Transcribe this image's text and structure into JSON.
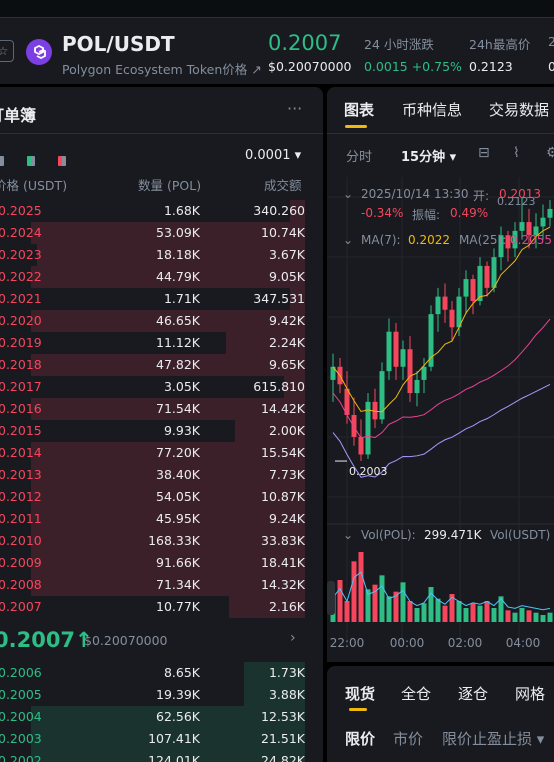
{
  "header": {
    "fav_icon": "star-icon",
    "pair": "POL/USDT",
    "pair_sub": "Polygon Ecosystem Token价格 ↗",
    "last_price": "0.2007",
    "last_price_usd": "$0.20070000",
    "change_label": "24 小时涨跌",
    "change_value": "0.0015 +0.75%",
    "high_label": "24h最高价",
    "high_value": "0.2123",
    "low_label_partial": "2",
    "low_value_partial": "0",
    "up_color": "#2ebd85",
    "down_color": "#f6465d"
  },
  "orderbook": {
    "title": "订单簿",
    "more": "···",
    "tick_size": "0.0001 ▾",
    "col_price": "价格 (USDT)",
    "col_qty": "数量 (POL)",
    "col_total": "成交额",
    "asks": [
      {
        "price": "0.2025",
        "qty": "1.68K",
        "total": "340.260",
        "depth": 0.05
      },
      {
        "price": "0.2024",
        "qty": "53.09K",
        "total": "10.74K",
        "depth": 0.9
      },
      {
        "price": "0.2023",
        "qty": "18.18K",
        "total": "3.67K",
        "depth": 0.88
      },
      {
        "price": "0.2022",
        "qty": "44.79K",
        "total": "9.05K",
        "depth": 0.9
      },
      {
        "price": "0.2021",
        "qty": "1.71K",
        "total": "347.531",
        "depth": 0.05
      },
      {
        "price": "0.2020",
        "qty": "46.65K",
        "total": "9.42K",
        "depth": 0.9
      },
      {
        "price": "0.2019",
        "qty": "11.12K",
        "total": "2.24K",
        "depth": 0.26
      },
      {
        "price": "0.2018",
        "qty": "47.82K",
        "total": "9.65K",
        "depth": 0.9
      },
      {
        "price": "0.2017",
        "qty": "3.05K",
        "total": "615.810",
        "depth": 0.07
      },
      {
        "price": "0.2016",
        "qty": "71.54K",
        "total": "14.42K",
        "depth": 0.9
      },
      {
        "price": "0.2015",
        "qty": "9.93K",
        "total": "2.00K",
        "depth": 0.23
      },
      {
        "price": "0.2014",
        "qty": "77.20K",
        "total": "15.54K",
        "depth": 0.9
      },
      {
        "price": "0.2013",
        "qty": "38.40K",
        "total": "7.73K",
        "depth": 0.9
      },
      {
        "price": "0.2012",
        "qty": "54.05K",
        "total": "10.87K",
        "depth": 0.9
      },
      {
        "price": "0.2011",
        "qty": "45.95K",
        "total": "9.24K",
        "depth": 0.9
      },
      {
        "price": "0.2010",
        "qty": "168.33K",
        "total": "33.83K",
        "depth": 0.9
      },
      {
        "price": "0.2009",
        "qty": "91.66K",
        "total": "18.41K",
        "depth": 0.9
      },
      {
        "price": "0.2008",
        "qty": "71.34K",
        "total": "14.32K",
        "depth": 0.9
      },
      {
        "price": "0.2007",
        "qty": "10.77K",
        "total": "2.16K",
        "depth": 0.25
      }
    ],
    "mid_price": "0.2007↑",
    "mid_price_usd": "$0.20070000",
    "bids": [
      {
        "price": "0.2006",
        "qty": "8.65K",
        "total": "1.73K",
        "depth": 0.2
      },
      {
        "price": "0.2005",
        "qty": "19.39K",
        "total": "3.88K",
        "depth": 0.2
      },
      {
        "price": "0.2004",
        "qty": "62.56K",
        "total": "12.53K",
        "depth": 0.9
      },
      {
        "price": "0.2003",
        "qty": "107.41K",
        "total": "21.51K",
        "depth": 0.9
      },
      {
        "price": "0.2002",
        "qty": "124.01K",
        "total": "24.82K",
        "depth": 0.9
      }
    ]
  },
  "chart_panel": {
    "tabs": [
      "图表",
      "币种信息",
      "交易数据"
    ],
    "timeframes": [
      "分时",
      "15分钟 ▾"
    ],
    "ohlc_date": "2025/10/14 13:30",
    "ohlc_open_label": "开:",
    "ohlc_open": "0.2013",
    "ohlc_change": "-0.34%",
    "ohlc_amp_label": "振幅:",
    "ohlc_amp": "0.49%",
    "ma7_label": "MA(7):",
    "ma7_value": "0.2022",
    "ma25_label": "MA(25):",
    "ma25_value": "0.2055",
    "high_marker": "0.2123",
    "low_marker": "0.2003",
    "vol_label": "Vol(POL):",
    "vol_value": "299.471K",
    "vol_usdt_label": "Vol(USDT)",
    "ma7_color": "#f0b90b",
    "ma25_color": "#e84393",
    "ma99_color": "#a29bfe"
  },
  "chart_data": {
    "type": "candlestick",
    "x_ticks": [
      "22:00",
      "00:00",
      "02:00",
      "04:00"
    ],
    "candles": [
      [
        0.204,
        0.2052,
        0.203,
        0.2046
      ],
      [
        0.2046,
        0.205,
        0.2034,
        0.2038
      ],
      [
        0.2036,
        0.2044,
        0.202,
        0.2024
      ],
      [
        0.2024,
        0.2032,
        0.201,
        0.2014
      ],
      [
        0.2014,
        0.2022,
        0.2003,
        0.2006
      ],
      [
        0.2006,
        0.2034,
        0.2004,
        0.203
      ],
      [
        0.203,
        0.2036,
        0.2018,
        0.2022
      ],
      [
        0.2022,
        0.2048,
        0.202,
        0.2044
      ],
      [
        0.2044,
        0.2068,
        0.204,
        0.2062
      ],
      [
        0.2062,
        0.2066,
        0.204,
        0.2046
      ],
      [
        0.2046,
        0.2058,
        0.204,
        0.2054
      ],
      [
        0.2054,
        0.206,
        0.203,
        0.2034
      ],
      [
        0.2034,
        0.2044,
        0.2028,
        0.204
      ],
      [
        0.204,
        0.205,
        0.2034,
        0.2046
      ],
      [
        0.2046,
        0.2074,
        0.2044,
        0.207
      ],
      [
        0.207,
        0.2082,
        0.2062,
        0.2078
      ],
      [
        0.2078,
        0.2084,
        0.2066,
        0.2072
      ],
      [
        0.2072,
        0.2076,
        0.2058,
        0.2064
      ],
      [
        0.2064,
        0.2082,
        0.206,
        0.2078
      ],
      [
        0.2078,
        0.209,
        0.207,
        0.2086
      ],
      [
        0.2086,
        0.2088,
        0.207,
        0.2076
      ],
      [
        0.2076,
        0.2096,
        0.2074,
        0.2092
      ],
      [
        0.2092,
        0.2094,
        0.2078,
        0.2082
      ],
      [
        0.2082,
        0.21,
        0.208,
        0.2096
      ],
      [
        0.2096,
        0.211,
        0.209,
        0.2106
      ],
      [
        0.2106,
        0.2108,
        0.2094,
        0.21
      ],
      [
        0.21,
        0.2112,
        0.2096,
        0.2108
      ],
      [
        0.2108,
        0.2123,
        0.2104,
        0.2112
      ],
      [
        0.2112,
        0.2118,
        0.21,
        0.2106
      ],
      [
        0.2106,
        0.2116,
        0.21,
        0.211
      ],
      [
        0.211,
        0.212,
        0.2104,
        0.2114
      ],
      [
        0.2114,
        0.2122,
        0.211,
        0.2118
      ]
    ],
    "volume": [
      120,
      180,
      90,
      260,
      300,
      140,
      160,
      200,
      110,
      130,
      170,
      90,
      60,
      80,
      150,
      100,
      70,
      120,
      90,
      60,
      80,
      70,
      90,
      60,
      110,
      50,
      40,
      60,
      50,
      40,
      30,
      40
    ]
  },
  "trade_panel": {
    "tabs": [
      "现货",
      "全仓",
      "逐仓",
      "网格"
    ],
    "order_types": [
      "限价",
      "市价",
      "限价止盈止损 ▾"
    ]
  }
}
